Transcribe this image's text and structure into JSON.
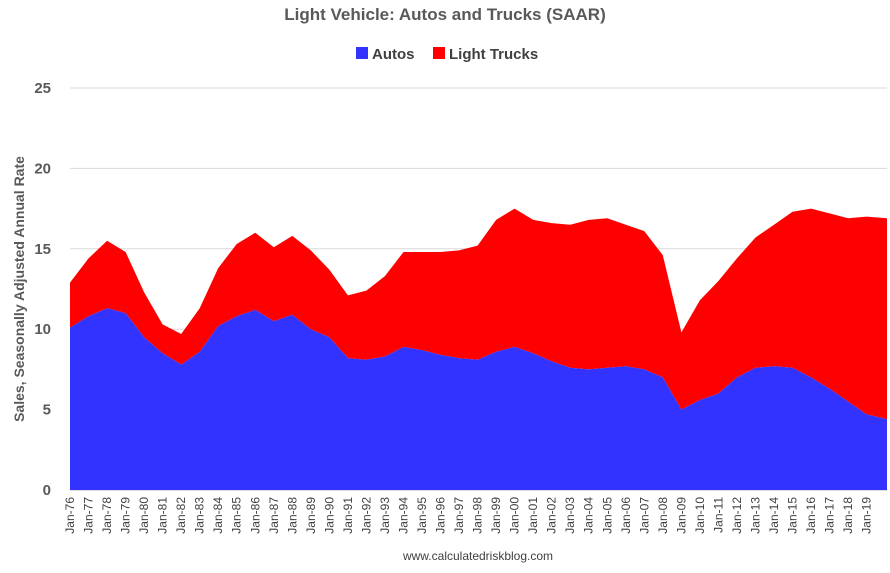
{
  "chart_data": {
    "type": "area",
    "title": "Light Vehicle: Autos and Trucks (SAAR)",
    "ylabel": "Sales, Seasonally Adjusted Annual Rate",
    "xlabel": "",
    "ylim": [
      0,
      25
    ],
    "yticks": [
      0,
      5,
      10,
      15,
      20,
      25
    ],
    "legend_position": "top-center",
    "stacked": true,
    "source_note": "www.calculatedriskblog.com",
    "categories": [
      "Jan-76",
      "Jan-77",
      "Jan-78",
      "Jan-79",
      "Jan-80",
      "Jan-81",
      "Jan-82",
      "Jan-83",
      "Jan-84",
      "Jan-85",
      "Jan-86",
      "Jan-87",
      "Jan-88",
      "Jan-89",
      "Jan-90",
      "Jan-91",
      "Jan-92",
      "Jan-93",
      "Jan-94",
      "Jan-95",
      "Jan-96",
      "Jan-97",
      "Jan-98",
      "Jan-99",
      "Jan-00",
      "Jan-01",
      "Jan-02",
      "Jan-03",
      "Jan-04",
      "Jan-05",
      "Jan-06",
      "Jan-07",
      "Jan-08",
      "Jan-09",
      "Jan-10",
      "Jan-11",
      "Jan-12",
      "Jan-13",
      "Jan-14",
      "Jan-15",
      "Jan-16",
      "Jan-17",
      "Jan-18",
      "Jan-19"
    ],
    "series": [
      {
        "name": "Autos",
        "color": "#3333ff",
        "values": [
          10.1,
          10.8,
          11.3,
          11.0,
          9.5,
          8.5,
          7.8,
          8.6,
          10.2,
          10.8,
          11.2,
          10.5,
          10.9,
          10.0,
          9.5,
          8.2,
          8.1,
          8.3,
          8.9,
          8.7,
          8.4,
          8.2,
          8.1,
          8.6,
          8.9,
          8.5,
          8.0,
          7.6,
          7.5,
          7.6,
          7.7,
          7.5,
          7.0,
          5.0,
          5.6,
          6.0,
          7.0,
          7.6,
          7.7,
          7.6,
          7.0,
          6.3,
          5.5,
          4.7
        ]
      },
      {
        "name": "Light Trucks",
        "color": "#ff0000",
        "values": [
          2.8,
          3.6,
          4.2,
          3.8,
          2.8,
          1.8,
          1.9,
          2.7,
          3.6,
          4.5,
          4.8,
          4.6,
          4.9,
          4.9,
          4.2,
          3.9,
          4.3,
          5.0,
          5.9,
          6.1,
          6.4,
          6.7,
          7.1,
          8.2,
          8.6,
          8.3,
          8.6,
          8.9,
          9.3,
          9.3,
          8.8,
          8.6,
          7.6,
          4.8,
          6.2,
          7.0,
          7.4,
          8.1,
          8.8,
          9.7,
          10.5,
          10.9,
          11.4,
          12.3
        ]
      }
    ],
    "x_end_value": {
      "Autos": 4.4,
      "Light Trucks": 12.5
    }
  }
}
